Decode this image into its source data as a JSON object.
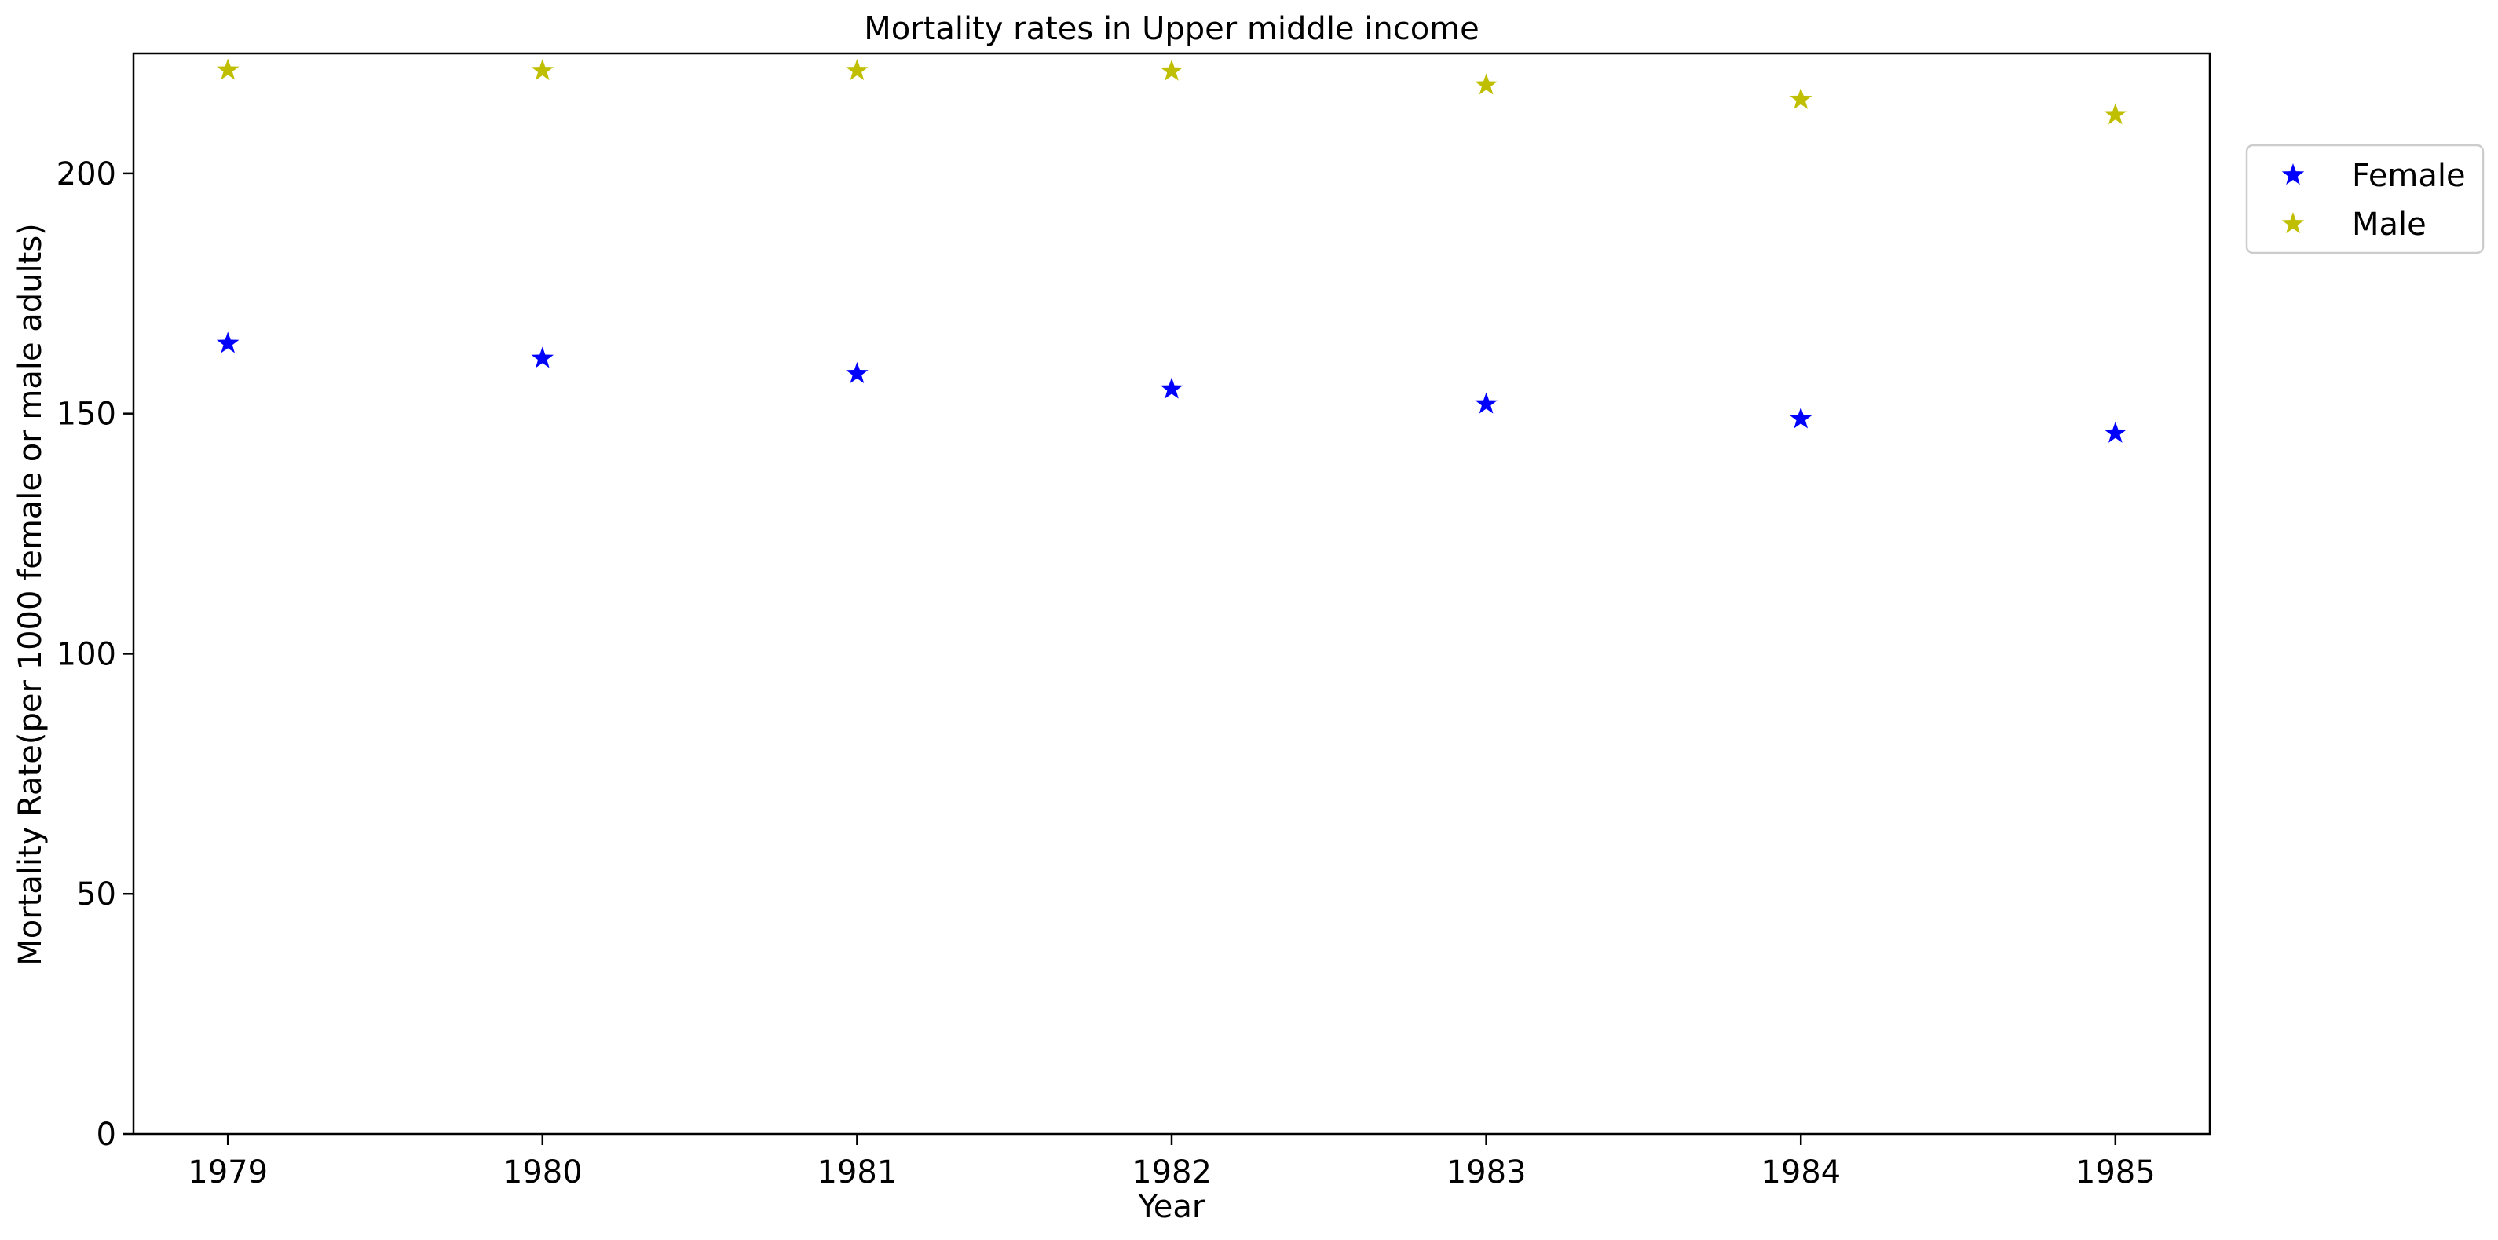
{
  "chart_data": {
    "type": "scatter",
    "title": "Mortality rates in Upper middle income",
    "xlabel": "Year",
    "ylabel": "Mortality Rate(per 1000 female or male adults)",
    "x": [
      1979,
      1980,
      1981,
      1982,
      1983,
      1984,
      1985
    ],
    "x_tick_labels": [
      "1979",
      "1980",
      "1981",
      "1982",
      "1983",
      "1984",
      "1985"
    ],
    "xlim": [
      1978.7,
      1985.3
    ],
    "ylim": [
      0,
      225
    ],
    "y_ticks": [
      0,
      50,
      100,
      150,
      200
    ],
    "y_tick_labels": [
      "0",
      "50",
      "100",
      "150",
      "200"
    ],
    "marker": "star",
    "grid": false,
    "legend_position": "outside-top-right",
    "series": [
      {
        "name": "Female",
        "color": "#0000ff",
        "values": [
          164.6,
          161.5,
          158.3,
          155.1,
          152.0,
          148.9,
          145.9
        ]
      },
      {
        "name": "Male",
        "color": "#bfbf00",
        "values": [
          221.5,
          221.4,
          221.4,
          221.3,
          218.4,
          215.4,
          212.2
        ]
      }
    ]
  }
}
